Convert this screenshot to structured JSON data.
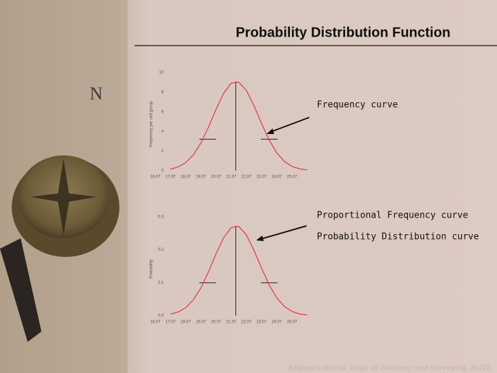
{
  "title": "Probability Distribution Function",
  "footer": "Szabolcs Rózsa, Dept. of Geodesy and Surveying, BUTE",
  "annotations": [
    "Frequency curve",
    "Proportional Frequency curve",
    "Probability Distribution curve"
  ],
  "chart_data": [
    {
      "type": "line",
      "ylabel": "Frequency per unit group",
      "x": [
        17,
        17.5,
        18,
        18.5,
        19,
        19.5,
        20,
        20.5,
        21,
        21.5,
        22,
        22.5,
        23,
        23.5,
        24,
        24.5,
        25,
        25.5,
        26
      ],
      "values": [
        0.15,
        0.37,
        0.81,
        1.59,
        2.81,
        4.43,
        6.25,
        7.89,
        8.92,
        9.02,
        8.16,
        6.61,
        4.79,
        3.1,
        1.8,
        0.94,
        0.43,
        0.18,
        0.07
      ],
      "color": "#e8324a",
      "xlim": [
        16,
        26
      ],
      "ylim": [
        0,
        10
      ],
      "xticks": [
        {
          "value": 16,
          "label": "16.07"
        },
        {
          "value": 17,
          "label": "17.07"
        },
        {
          "value": 18,
          "label": "18.07"
        },
        {
          "value": 19,
          "label": "19.07"
        },
        {
          "value": 20,
          "label": "20.07"
        },
        {
          "value": 21,
          "label": "21.07"
        },
        {
          "value": 22,
          "label": "22.07"
        },
        {
          "value": 23,
          "label": "23.07"
        },
        {
          "value": 24,
          "label": "24.07"
        },
        {
          "value": 25,
          "label": "25.07"
        }
      ],
      "yticks": [
        0,
        2,
        4,
        6,
        8,
        10
      ],
      "mean_line": {
        "x": 21.3,
        "y": 9.1
      },
      "markers": [
        {
          "x": [
            18.9,
            20
          ],
          "y": 3.2
        },
        {
          "x": [
            22.95,
            24.05
          ],
          "y": 3.2
        }
      ]
    },
    {
      "type": "line",
      "ylabel": "Probability",
      "x": [
        17,
        17.5,
        18,
        18.5,
        19,
        19.5,
        20,
        20.5,
        21,
        21.5,
        22,
        22.5,
        23,
        23.5,
        24,
        24.5,
        25,
        25.5,
        26
      ],
      "values": [
        0.005,
        0.011,
        0.024,
        0.048,
        0.084,
        0.133,
        0.188,
        0.237,
        0.268,
        0.271,
        0.245,
        0.198,
        0.144,
        0.093,
        0.054,
        0.028,
        0.013,
        0.005,
        0.002
      ],
      "color": "#e8324a",
      "xlim": [
        16,
        26
      ],
      "ylim": [
        0,
        0.3
      ],
      "xticks": [
        {
          "value": 16,
          "label": "16.07"
        },
        {
          "value": 17,
          "label": "17.07"
        },
        {
          "value": 18,
          "label": "18.07"
        },
        {
          "value": 19,
          "label": "19.07"
        },
        {
          "value": 20,
          "label": "20.07"
        },
        {
          "value": 21,
          "label": "21.07"
        },
        {
          "value": 22,
          "label": "22.07"
        },
        {
          "value": 23,
          "label": "23.07"
        },
        {
          "value": 24,
          "label": "24.07"
        },
        {
          "value": 25,
          "label": "25.07"
        }
      ],
      "yticks": [
        {
          "value": 0,
          "label": "0.0"
        },
        0.1,
        0.2,
        0.3
      ],
      "mean_line": {
        "x": 21.3,
        "y": 0.273
      },
      "markers": [
        {
          "x": [
            18.9,
            20
          ],
          "y": 0.1
        },
        {
          "x": [
            22.95,
            24.05
          ],
          "y": 0.1
        }
      ]
    }
  ]
}
